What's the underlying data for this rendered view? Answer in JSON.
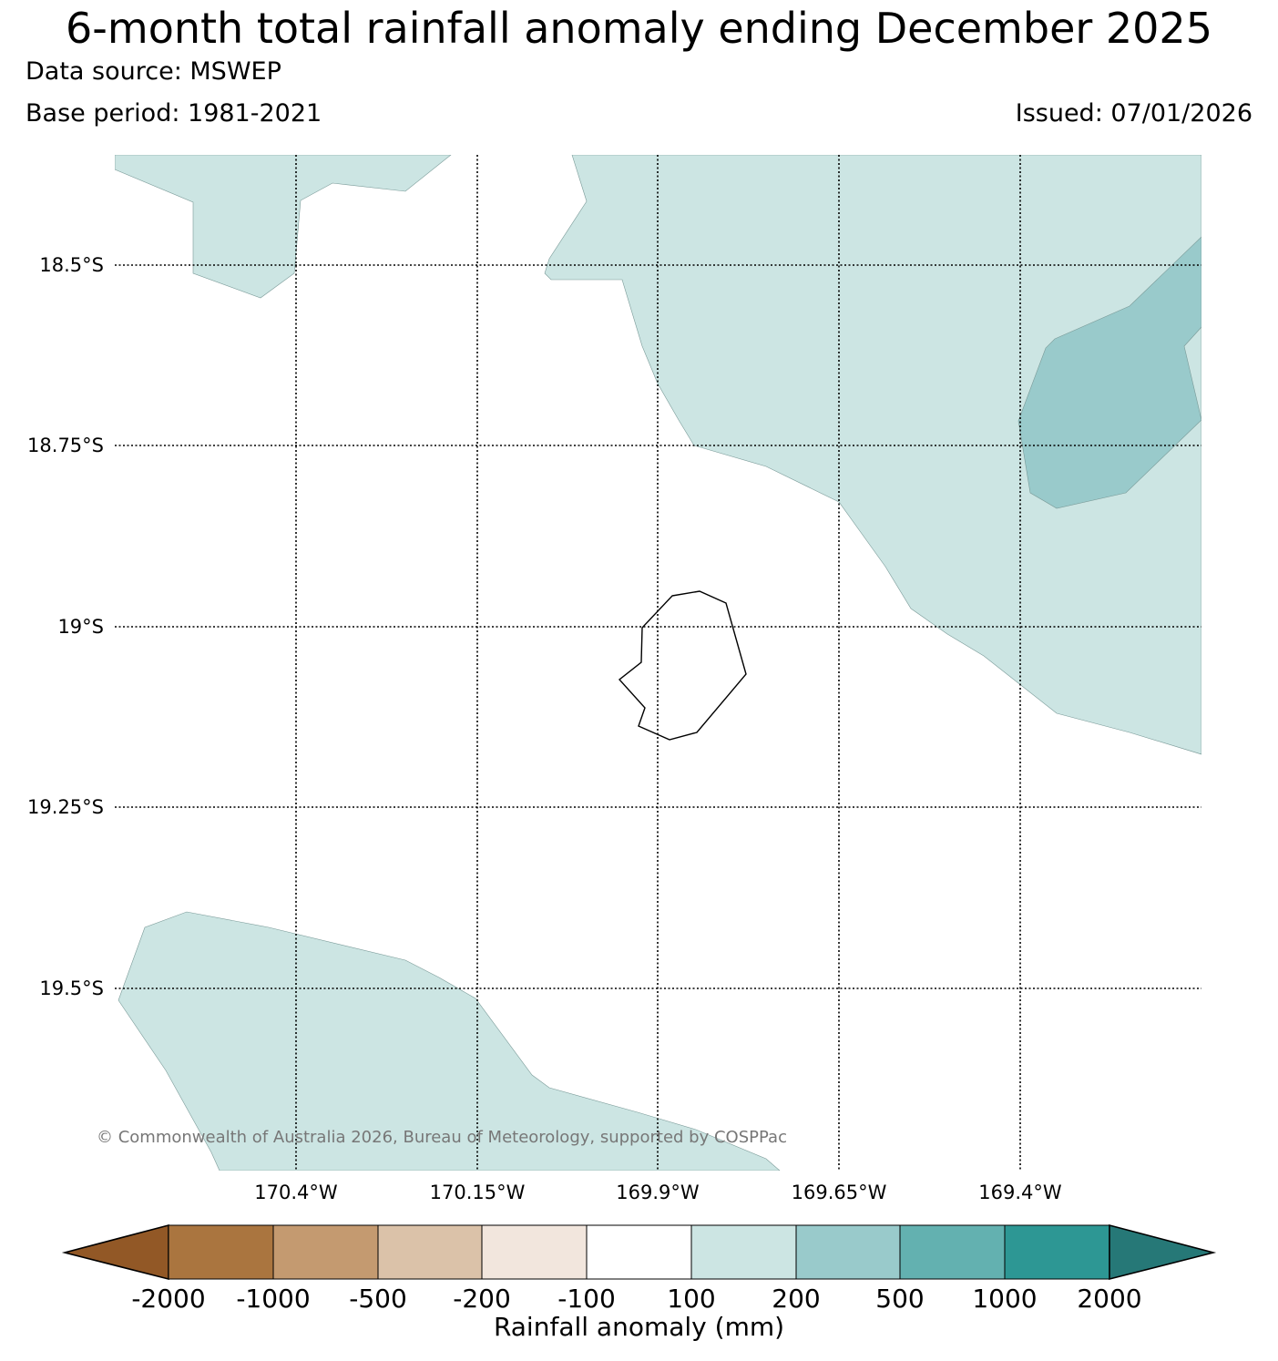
{
  "header": {
    "title": "6-month total rainfall anomaly ending December 2025",
    "data_source": "Data source: MSWEP",
    "base_period": "Base period: 1981-2021",
    "issued": "Issued: 07/01/2026"
  },
  "map": {
    "lat_labels": [
      "18.5°S",
      "18.75°S",
      "19°S",
      "19.25°S",
      "19.5°S"
    ],
    "lon_labels": [
      "170.4°W",
      "170.15°W",
      "169.9°W",
      "169.65°W",
      "169.4°W"
    ],
    "region": "Niue",
    "copyright": "© Commonwealth of Australia 2026, Bureau of Meteorology, supported by COSPPac"
  },
  "colorbar": {
    "title": "Rainfall anomaly (mm)",
    "tick_labels": [
      "-2000",
      "-1000",
      "-500",
      "-200",
      "-100",
      "100",
      "200",
      "500",
      "1000",
      "2000"
    ],
    "colors": [
      "#925826",
      "#aa753f",
      "#c49a70",
      "#dbc2a9",
      "#f2e6dd",
      "#ffffff",
      "#cce5e3",
      "#99cacb",
      "#63b1b0",
      "#2d9794",
      "#267877"
    ],
    "anomaly_categories_shown": [
      "100 to 200",
      "200 to 500"
    ]
  }
}
